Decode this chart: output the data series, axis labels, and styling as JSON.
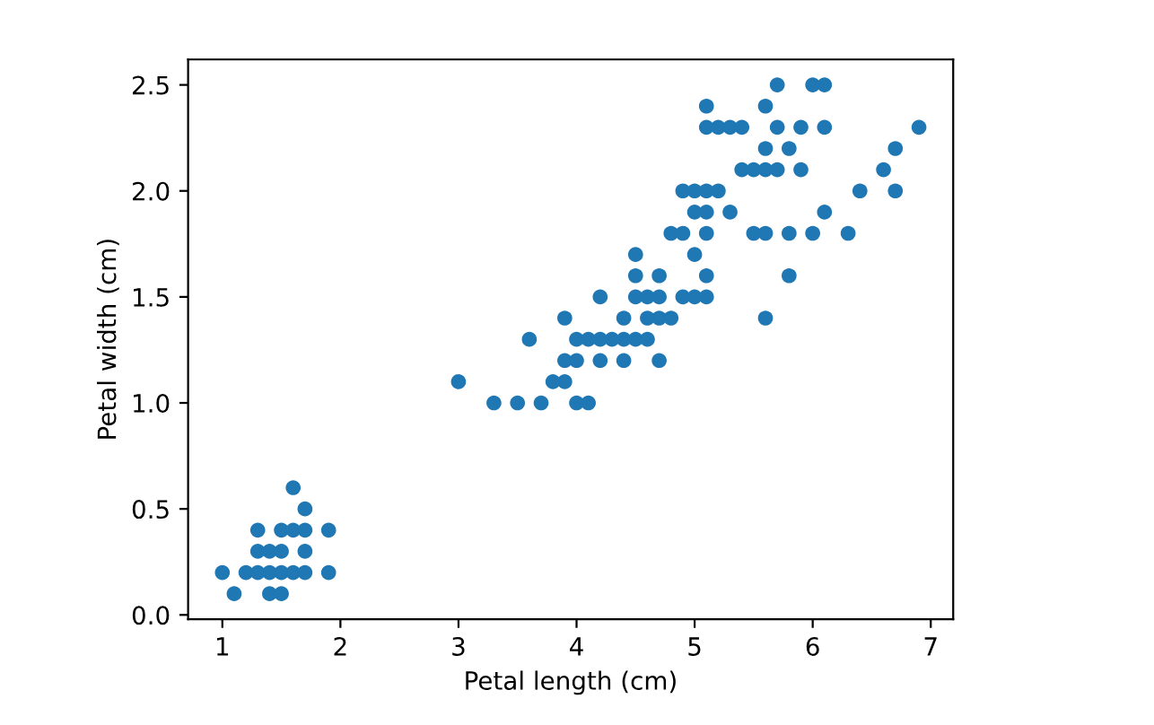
{
  "chart_data": {
    "type": "scatter",
    "xlabel": "Petal length (cm)",
    "ylabel": "Petal width (cm)",
    "x": [
      1.0,
      1.1,
      1.2,
      1.3,
      1.3,
      1.3,
      1.4,
      1.4,
      1.4,
      1.5,
      1.5,
      1.5,
      1.5,
      1.6,
      1.6,
      1.6,
      1.7,
      1.7,
      1.7,
      1.7,
      1.9,
      1.9,
      4.7,
      4.5,
      4.9,
      4.0,
      4.6,
      4.5,
      4.7,
      3.3,
      4.6,
      3.9,
      3.5,
      4.2,
      4.0,
      3.6,
      4.4,
      4.1,
      3.9,
      4.8,
      4.7,
      4.3,
      4.8,
      5.0,
      3.8,
      3.7,
      3.9,
      5.1,
      4.5,
      4.7,
      4.4,
      4.1,
      4.4,
      4.6,
      4.0,
      4.2,
      4.2,
      3.0,
      6.0,
      5.1,
      5.9,
      5.6,
      5.8,
      6.6,
      4.5,
      6.3,
      5.8,
      6.1,
      5.1,
      5.3,
      5.5,
      5.0,
      5.1,
      5.3,
      5.5,
      6.7,
      6.9,
      5.0,
      5.7,
      4.9,
      6.7,
      4.9,
      5.7,
      6.0,
      5.6,
      5.8,
      6.1,
      6.4,
      5.6,
      5.1,
      5.6,
      6.1,
      5.6,
      5.4,
      5.1,
      5.9,
      5.7,
      5.2,
      5.0,
      5.2,
      5.4,
      5.1
    ],
    "series": [
      {
        "color": "#1f77b4",
        "values": [
          0.2,
          0.1,
          0.2,
          0.2,
          0.3,
          0.4,
          0.1,
          0.2,
          0.3,
          0.1,
          0.2,
          0.3,
          0.4,
          0.2,
          0.4,
          0.6,
          0.2,
          0.3,
          0.4,
          0.5,
          0.2,
          0.4,
          1.4,
          1.5,
          1.5,
          1.3,
          1.5,
          1.3,
          1.6,
          1.0,
          1.3,
          1.4,
          1.0,
          1.5,
          1.0,
          1.3,
          1.4,
          1.0,
          1.1,
          1.8,
          1.2,
          1.3,
          1.4,
          1.7,
          1.1,
          1.0,
          1.2,
          1.6,
          1.6,
          1.5,
          1.3,
          1.3,
          1.2,
          1.4,
          1.2,
          1.3,
          1.2,
          1.1,
          2.5,
          1.9,
          2.1,
          1.8,
          2.2,
          2.1,
          1.7,
          1.8,
          1.8,
          2.5,
          2.0,
          1.9,
          2.1,
          2.0,
          2.4,
          2.3,
          1.8,
          2.2,
          2.3,
          1.5,
          2.3,
          2.0,
          2.0,
          1.8,
          2.1,
          1.8,
          2.1,
          1.6,
          1.9,
          2.0,
          2.2,
          1.5,
          1.4,
          2.3,
          2.4,
          2.1,
          2.3,
          2.3,
          2.5,
          2.3,
          1.9,
          2.0,
          2.3,
          1.8
        ]
      }
    ],
    "xlim": [
      0.71,
      7.19
    ],
    "ylim": [
      -0.02,
      2.62
    ],
    "xticks": [
      1,
      2,
      3,
      4,
      5,
      6,
      7
    ],
    "yticks": [
      {
        "value": 0,
        "label": "0.0"
      },
      0.5,
      {
        "value": 1,
        "label": "1.0"
      },
      1.5,
      {
        "value": 2,
        "label": "2.0"
      },
      2.5
    ],
    "marker": "circle",
    "grid": false
  }
}
